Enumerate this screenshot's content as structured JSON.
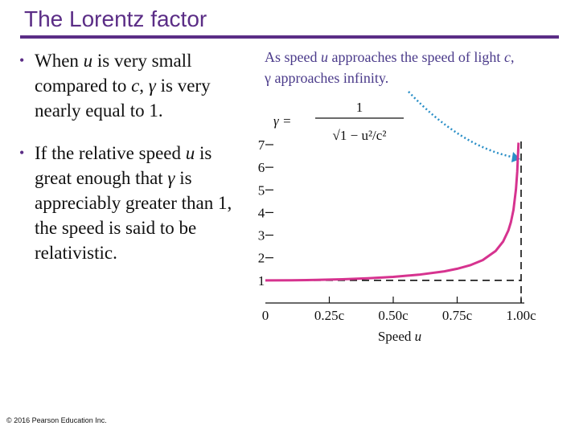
{
  "slide": {
    "title": "The Lorentz factor",
    "bullets": [
      {
        "parts": [
          "When ",
          "u",
          " is very small compared to ",
          "c",
          ", ",
          "γ",
          " is very nearly equal to 1."
        ]
      },
      {
        "parts": [
          "If the relative speed ",
          "u",
          " is great enough that ",
          "γ",
          " is appreciably greater than 1, the speed is said to be relativistic."
        ]
      }
    ],
    "copyright": "© 2016 Pearson Education Inc."
  },
  "colors": {
    "title": "#5b2d86",
    "curve": "#d6338f",
    "annotation": "#4a3a8a",
    "arrow": "#2a8fc7"
  },
  "chart_data": {
    "type": "line",
    "annotation_line1_parts": [
      "As speed ",
      "u",
      " approaches the speed of light ",
      "c",
      ","
    ],
    "annotation_line2": "γ approaches infinity.",
    "formula": {
      "lhs": "γ =",
      "numerator": "1",
      "denominator": "√1 − u²/c²"
    },
    "xlabel_parts": [
      "Speed ",
      "u"
    ],
    "ylabel": "",
    "xlim": [
      0,
      1
    ],
    "ylim": [
      0,
      7
    ],
    "xticks": [
      {
        "value": 0.25,
        "label": "0.25c"
      },
      {
        "value": 0.5,
        "label": "0.50c"
      },
      {
        "value": 0.75,
        "label": "0.75c"
      },
      {
        "value": 1.0,
        "label": "1.00c"
      }
    ],
    "origin_label": "0",
    "yticks": [
      1,
      2,
      3,
      4,
      5,
      6,
      7
    ],
    "asymptote_x": 1.0,
    "baseline_y": 1,
    "series": [
      {
        "x": [
          0,
          0.1,
          0.2,
          0.3,
          0.4,
          0.5,
          0.6,
          0.7,
          0.75,
          0.8,
          0.85,
          0.9,
          0.93,
          0.95,
          0.96,
          0.97,
          0.98,
          0.985,
          0.99
        ],
        "y": [
          1.0,
          1.005,
          1.021,
          1.048,
          1.091,
          1.155,
          1.25,
          1.4,
          1.512,
          1.667,
          1.898,
          2.294,
          2.721,
          3.203,
          3.571,
          4.113,
          5.025,
          5.803,
          7.089
        ]
      }
    ]
  }
}
